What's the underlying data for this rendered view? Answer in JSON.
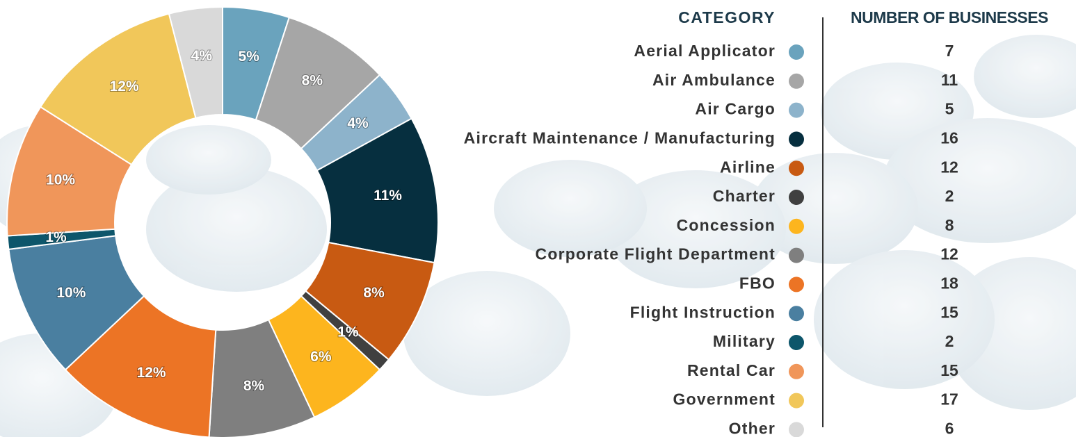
{
  "chart_data": {
    "type": "donut",
    "category_header": "CATEGORY",
    "count_header": "NUMBER OF BUSINESSES",
    "categories": [
      "Aerial Applicator",
      "Air Ambulance",
      "Air Cargo",
      "Aircraft Maintenance / Manufacturing",
      "Airline",
      "Charter",
      "Concession",
      "Corporate Flight Department",
      "FBO",
      "Flight Instruction",
      "Military",
      "Rental Car",
      "Government",
      "Other"
    ],
    "values": [
      5,
      8,
      4,
      11,
      8,
      1,
      6,
      8,
      12,
      10,
      1,
      10,
      12,
      4
    ],
    "value_labels": [
      "5%",
      "8%",
      "4%",
      "11%",
      "8%",
      "1%",
      "6%",
      "8%",
      "12%",
      "10%",
      "1%",
      "10%",
      "12%",
      "4%"
    ],
    "counts": [
      7,
      11,
      5,
      16,
      12,
      2,
      8,
      12,
      18,
      15,
      2,
      15,
      17,
      6
    ],
    "colors": [
      "#6aa3bd",
      "#a6a6a6",
      "#8db3cb",
      "#062f3f",
      "#c85a12",
      "#404040",
      "#fdb51e",
      "#7f7f7f",
      "#ec7425",
      "#4a7fa0",
      "#0d566b",
      "#f0965a",
      "#f1c75a",
      "#d9d9d9"
    ]
  }
}
